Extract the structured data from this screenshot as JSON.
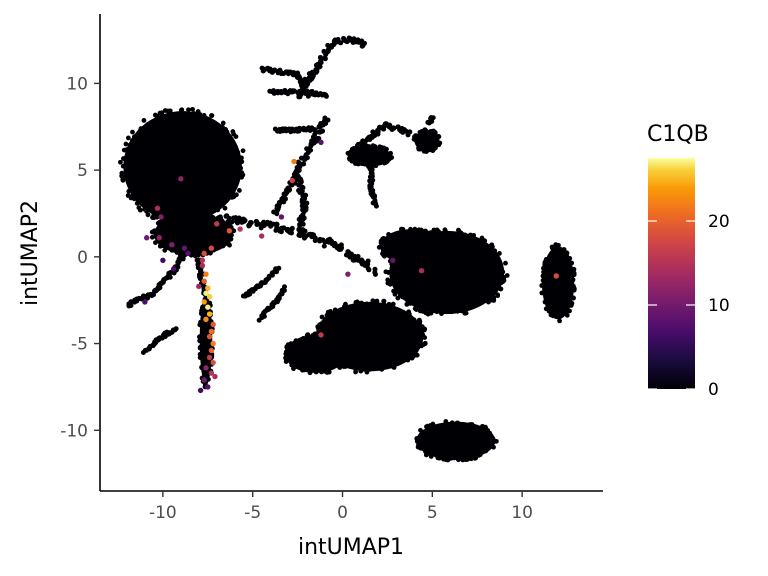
{
  "chart_data": {
    "type": "scatter",
    "title": "",
    "xlabel": "intUMAP1",
    "ylabel": "intUMAP2",
    "xlim": [
      -13.5,
      14.5
    ],
    "ylim": [
      -13.5,
      14
    ],
    "x_ticks": [
      -10,
      -5,
      0,
      5,
      10
    ],
    "y_ticks": [
      -10,
      -5,
      0,
      5,
      10
    ],
    "grid": false,
    "legend": {
      "title": "C1QB",
      "position": "right",
      "min": 0,
      "max": 27.5,
      "ticks": [
        0,
        10,
        20
      ],
      "colormap": "inferno"
    },
    "clusters": [
      {
        "cx": -8.9,
        "cy": 5.2,
        "rx": 3.3,
        "ry": 3.2
      },
      {
        "cx": -8.3,
        "cy": 1.3,
        "rx": 2.2,
        "ry": 1.2
      },
      {
        "cx": 5.8,
        "cy": -0.9,
        "rx": 3.2,
        "ry": 2.4
      },
      {
        "cx": 3.8,
        "cy": 0.6,
        "rx": 1.7,
        "ry": 1.0
      },
      {
        "cx": 1.5,
        "cy": -4.6,
        "rx": 3.0,
        "ry": 2.0
      },
      {
        "cx": -1.5,
        "cy": -5.6,
        "rx": 1.7,
        "ry": 1.1
      },
      {
        "cx": 12.0,
        "cy": -1.5,
        "rx": 0.9,
        "ry": 2.1
      },
      {
        "cx": 6.3,
        "cy": -10.6,
        "rx": 2.2,
        "ry": 1.1
      },
      {
        "cx": 1.5,
        "cy": 5.8,
        "rx": 1.2,
        "ry": 0.6
      },
      {
        "cx": 4.7,
        "cy": 6.7,
        "rx": 0.7,
        "ry": 0.6
      },
      {
        "cx": -7.6,
        "cy": -4.8,
        "rx": 0.35,
        "ry": 2.6
      }
    ],
    "strands": [
      {
        "points": [
          [
            -7.5,
            2.3
          ],
          [
            -5.5,
            2.0
          ],
          [
            -3.5,
            1.7
          ],
          [
            -1.5,
            1.1
          ],
          [
            0.5,
            0.2
          ],
          [
            1.7,
            -0.8
          ]
        ],
        "width": 0.45
      },
      {
        "points": [
          [
            -3.8,
            2.4
          ],
          [
            -3.0,
            3.8
          ],
          [
            -2.4,
            5.2
          ],
          [
            -1.5,
            6.8
          ],
          [
            -0.9,
            8.0
          ]
        ],
        "width": 0.3
      },
      {
        "points": [
          [
            -2.5,
            4.8
          ],
          [
            -2.1,
            3.0
          ],
          [
            -2.4,
            1.5
          ]
        ],
        "width": 0.3
      },
      {
        "points": [
          [
            -4.4,
            10.8
          ],
          [
            -2.5,
            10.5
          ],
          [
            -2.0,
            9.3
          ]
        ],
        "width": 0.2
      },
      {
        "points": [
          [
            -2.5,
            9.3
          ],
          [
            -0.5,
            12.4
          ],
          [
            0.5,
            12.5
          ],
          [
            1.2,
            12.2
          ]
        ],
        "width": 0.28
      },
      {
        "points": [
          [
            -4.0,
            9.5
          ],
          [
            -2.0,
            9.5
          ],
          [
            -0.8,
            9.3
          ]
        ],
        "width": 0.2
      },
      {
        "points": [
          [
            -3.7,
            7.3
          ],
          [
            -2.6,
            7.3
          ],
          [
            -1.6,
            7.4
          ]
        ],
        "width": 0.18
      },
      {
        "points": [
          [
            -11.9,
            -2.8
          ],
          [
            -10.4,
            -2.0
          ],
          [
            -9.3,
            -0.6
          ],
          [
            -8.6,
            0.4
          ]
        ],
        "width": 0.22
      },
      {
        "points": [
          [
            -11.0,
            -5.5
          ],
          [
            -10.0,
            -4.6
          ],
          [
            -9.3,
            -4.1
          ]
        ],
        "width": 0.2
      },
      {
        "points": [
          [
            -5.5,
            -2.3
          ],
          [
            -4.3,
            -1.4
          ],
          [
            -3.6,
            -0.7
          ]
        ],
        "width": 0.15
      },
      {
        "points": [
          [
            -4.6,
            -3.6
          ],
          [
            -3.8,
            -2.7
          ],
          [
            -3.2,
            -1.8
          ]
        ],
        "width": 0.15
      },
      {
        "points": [
          [
            -8.2,
            2.0
          ],
          [
            -7.9,
            -0.8
          ],
          [
            -7.6,
            -2.2
          ]
        ],
        "width": 0.3
      },
      {
        "points": [
          [
            0.8,
            6.3
          ],
          [
            2.4,
            7.6
          ],
          [
            3.8,
            7.1
          ]
        ],
        "width": 0.25
      },
      {
        "points": [
          [
            4.8,
            7.7
          ],
          [
            5.0,
            8.0
          ]
        ],
        "width": 0.2
      },
      {
        "points": [
          [
            1.6,
            5.3
          ],
          [
            1.6,
            3.9
          ],
          [
            1.8,
            3.0
          ]
        ],
        "width": 0.2
      },
      {
        "points": [
          [
            4.0,
            -1.2
          ],
          [
            5.2,
            -2.5
          ]
        ],
        "width": 0.7
      }
    ],
    "expressing_points": [
      {
        "x": -7.7,
        "y": 0.2,
        "v": 18
      },
      {
        "x": -7.8,
        "y": -0.5,
        "v": 14
      },
      {
        "x": -7.6,
        "y": -1.0,
        "v": 22
      },
      {
        "x": -7.7,
        "y": -1.4,
        "v": 20
      },
      {
        "x": -7.5,
        "y": -1.8,
        "v": 25
      },
      {
        "x": -7.6,
        "y": -2.1,
        "v": 27
      },
      {
        "x": -7.4,
        "y": -2.3,
        "v": 26
      },
      {
        "x": -7.7,
        "y": -2.6,
        "v": 24
      },
      {
        "x": -7.5,
        "y": -2.9,
        "v": 27
      },
      {
        "x": -7.4,
        "y": -3.3,
        "v": 25
      },
      {
        "x": -7.6,
        "y": -3.6,
        "v": 23
      },
      {
        "x": -7.3,
        "y": -4.3,
        "v": 21
      },
      {
        "x": -7.4,
        "y": -4.6,
        "v": 19
      },
      {
        "x": -7.2,
        "y": -5.0,
        "v": 22
      },
      {
        "x": -7.3,
        "y": -5.4,
        "v": 20
      },
      {
        "x": -7.4,
        "y": -5.8,
        "v": 16
      },
      {
        "x": -7.2,
        "y": -6.1,
        "v": 18
      },
      {
        "x": -7.6,
        "y": -6.4,
        "v": 12
      },
      {
        "x": -7.3,
        "y": -6.7,
        "v": 15
      },
      {
        "x": -7.7,
        "y": -7.1,
        "v": 10
      },
      {
        "x": -7.5,
        "y": -7.5,
        "v": 8
      },
      {
        "x": -7.9,
        "y": -7.7,
        "v": 6
      },
      {
        "x": -7.8,
        "y": -0.2,
        "v": 15
      },
      {
        "x": -8.0,
        "y": -1.7,
        "v": 13
      },
      {
        "x": -7.2,
        "y": -3.9,
        "v": 19
      },
      {
        "x": -7.1,
        "y": -6.9,
        "v": 14
      },
      {
        "x": -7.3,
        "y": 0.5,
        "v": 18
      },
      {
        "x": -7.0,
        "y": 1.9,
        "v": 16
      },
      {
        "x": -6.3,
        "y": 1.5,
        "v": 19
      },
      {
        "x": -5.7,
        "y": 1.6,
        "v": 15
      },
      {
        "x": -4.5,
        "y": 1.2,
        "v": 14
      },
      {
        "x": -8.8,
        "y": 0.5,
        "v": 9
      },
      {
        "x": -9.5,
        "y": 0.7,
        "v": 11
      },
      {
        "x": -10.2,
        "y": 1.1,
        "v": 12
      },
      {
        "x": -10.9,
        "y": 1.1,
        "v": 10
      },
      {
        "x": -10.3,
        "y": 2.8,
        "v": 14
      },
      {
        "x": -10.1,
        "y": 2.3,
        "v": 11
      },
      {
        "x": -9.0,
        "y": 4.5,
        "v": 12
      },
      {
        "x": -8.6,
        "y": 0.2,
        "v": 8
      },
      {
        "x": -9.4,
        "y": -0.7,
        "v": 7
      },
      {
        "x": -11.0,
        "y": -2.6,
        "v": 7
      },
      {
        "x": -10.0,
        "y": -0.2,
        "v": 6
      },
      {
        "x": -2.7,
        "y": 5.5,
        "v": 22
      },
      {
        "x": -2.8,
        "y": 4.4,
        "v": 17
      },
      {
        "x": -3.4,
        "y": 2.3,
        "v": 9
      },
      {
        "x": -1.2,
        "y": 6.6,
        "v": 8
      },
      {
        "x": -1.2,
        "y": -4.5,
        "v": 16
      },
      {
        "x": 0.3,
        "y": -1.0,
        "v": 11
      },
      {
        "x": 2.8,
        "y": -0.2,
        "v": 9
      },
      {
        "x": 4.4,
        "y": -0.8,
        "v": 14
      },
      {
        "x": 11.9,
        "y": -1.1,
        "v": 18
      }
    ]
  }
}
